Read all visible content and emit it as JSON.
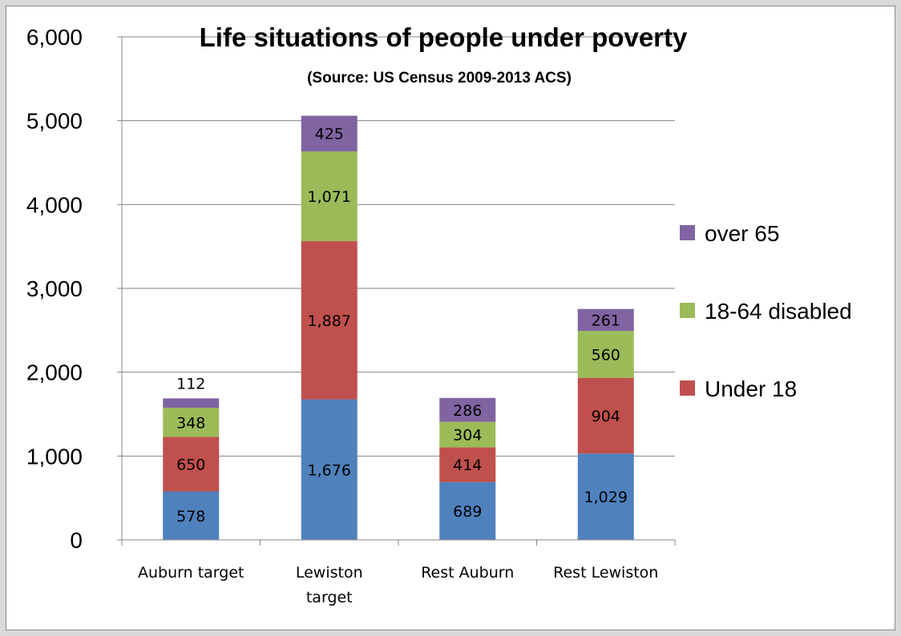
{
  "chart_data": {
    "type": "bar",
    "stacked": true,
    "title": "Life situations of people under poverty",
    "subtitle": "(Source: US Census 2009-2013 ACS)",
    "categories": [
      [
        "Auburn target"
      ],
      [
        "Lewiston",
        "target"
      ],
      [
        "Rest Auburn"
      ],
      [
        "Rest Lewiston"
      ]
    ],
    "series": [
      {
        "values": [
          578,
          1676,
          689,
          1029
        ],
        "color": "#4f81bd"
      },
      {
        "name": "Under 18",
        "values": [
          650,
          1887,
          414,
          904
        ],
        "color": "#c0504d"
      },
      {
        "name": "18-64 disabled",
        "values": [
          348,
          1071,
          304,
          560
        ],
        "color": "#9bbb59"
      },
      {
        "name": "over 65",
        "values": [
          112,
          425,
          286,
          261
        ],
        "color": "#8064a2"
      }
    ],
    "ylim": [
      0,
      6000
    ],
    "yticks": [
      0,
      1000,
      2000,
      3000,
      4000,
      5000,
      6000
    ],
    "ytick_labels": [
      "0",
      "1,000",
      "2,000",
      "3,000",
      "4,000",
      "5,000",
      "6,000"
    ],
    "grid": true,
    "legend_position": "right"
  }
}
